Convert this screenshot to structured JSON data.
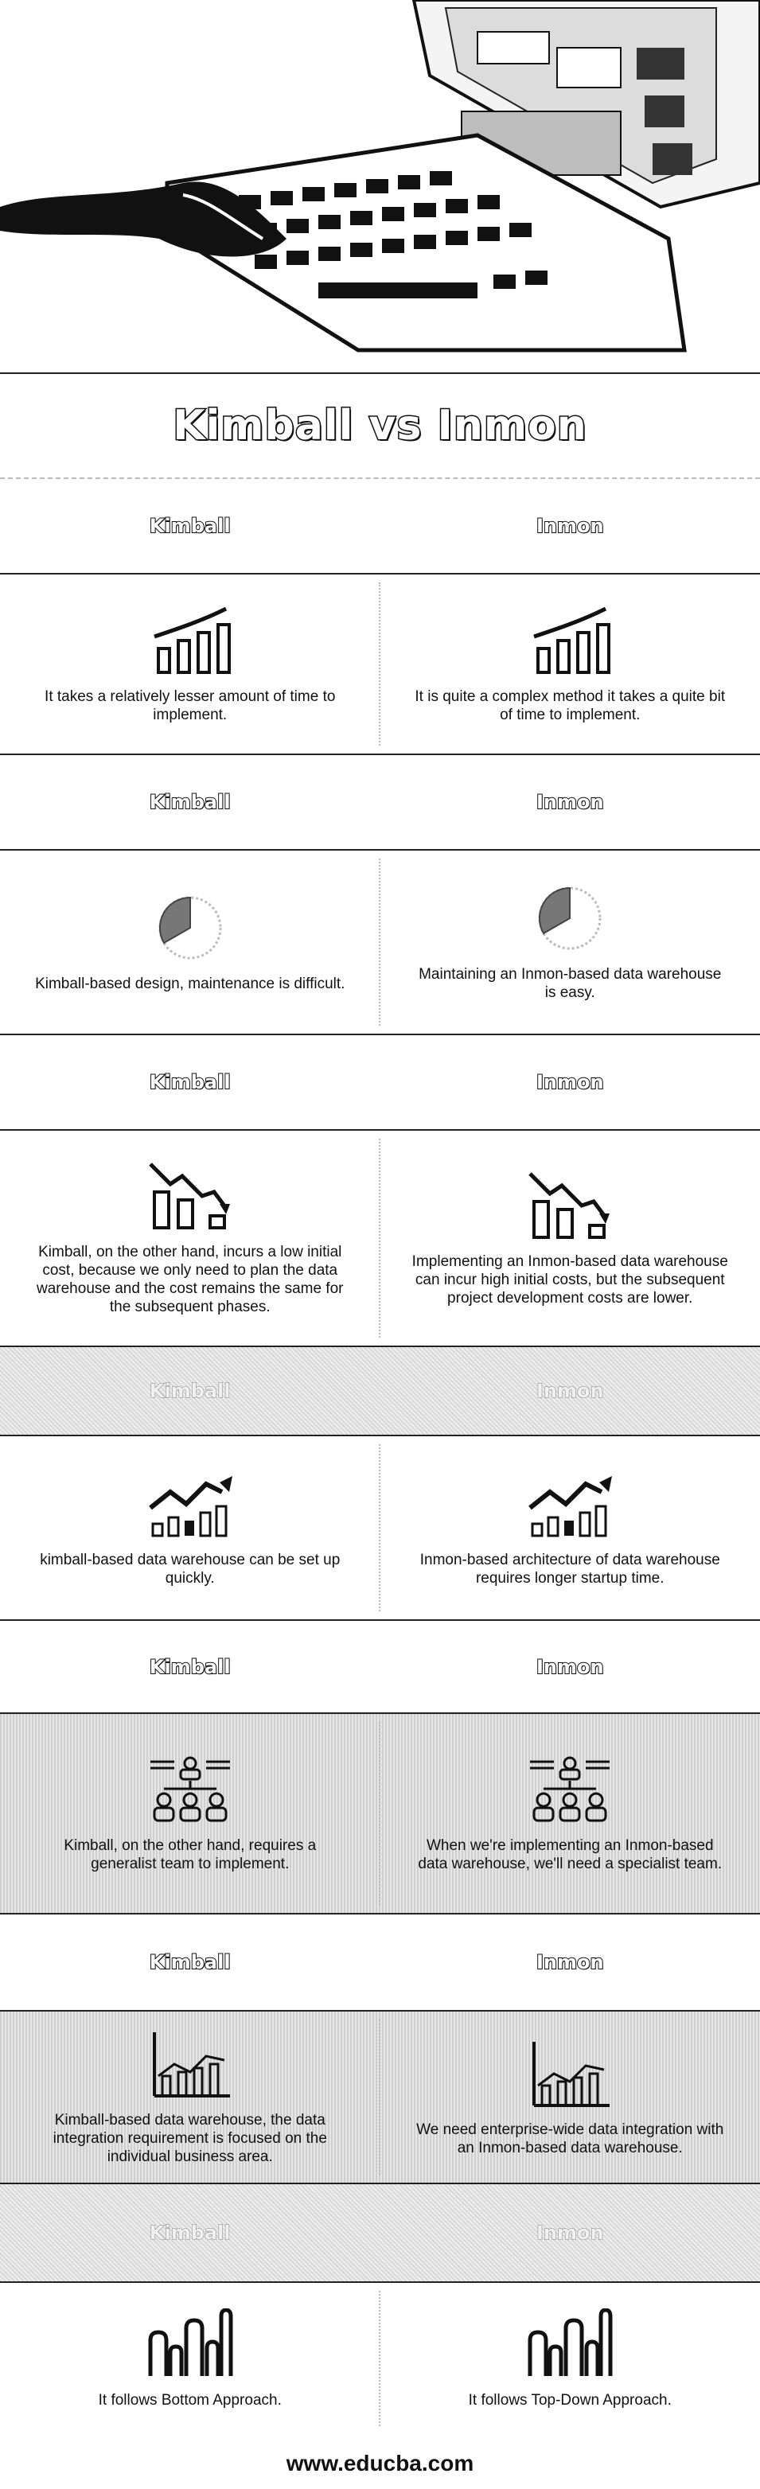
{
  "title": "Kimball vs Inmon",
  "footer": "www.educba.com",
  "sections": [
    {
      "left_header": "Kimball",
      "right_header": "Inmon",
      "icon": "bar-chart-trend-icon",
      "left_text": "It takes a relatively lesser amount of time to implement.",
      "right_text": "It is quite a complex method it takes a quite bit of time to implement."
    },
    {
      "left_header": "Kimball",
      "right_header": "Inmon",
      "icon": "maintenance-gauge-icon",
      "left_text": "Kimball-based design, maintenance is difficult.",
      "right_text": "Maintaining an Inmon-based data warehouse is easy."
    },
    {
      "left_header": "Kimball",
      "right_header": "Inmon",
      "icon": "declining-cost-chart-icon",
      "left_text": "Kimball, on the other hand, incurs a low initial cost, because we only need to plan the data warehouse and the cost remains the same for the subsequent phases.",
      "right_text": "Implementing an Inmon-based data warehouse can incur high initial costs, but the subsequent project development costs are lower."
    },
    {
      "left_header": "Kimball",
      "right_header": "Inmon",
      "icon": "growth-chart-icon",
      "left_text": "kimball-based data warehouse can be set up quickly.",
      "right_text": "Inmon-based architecture of data warehouse requires longer startup time."
    },
    {
      "left_header": "Kimball",
      "right_header": "Inmon",
      "icon": "team-hierarchy-icon",
      "left_text": "Kimball, on the other hand, requires a generalist team to implement.",
      "right_text": "When we're implementing an Inmon-based data warehouse, we'll need a specialist team."
    },
    {
      "left_header": "Kimball",
      "right_header": "Inmon",
      "icon": "data-integration-chart-icon",
      "left_text": "Kimball-based data warehouse, the data integration requirement is focused on the individual business area.",
      "right_text": "We need enterprise-wide data integration with an Inmon-based data warehouse."
    },
    {
      "left_header": "Kimball",
      "right_header": "Inmon",
      "icon": "approach-bars-icon",
      "left_text": "It follows Bottom Approach.",
      "right_text": "It follows Top-Down Approach."
    }
  ]
}
